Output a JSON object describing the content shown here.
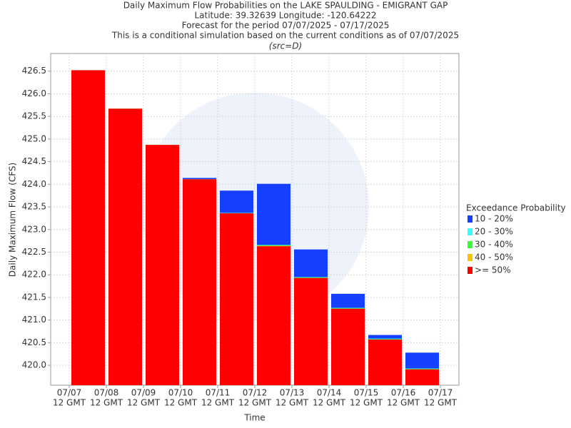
{
  "chart_data": {
    "type": "overlaid-bar",
    "title": "Daily Maximum Flow Probabilities on the LAKE SPAULDING - EMIGRANT GAP",
    "subtitle": [
      "Latitude: 39.32639 Longitude: -120.64222",
      "Forecast for the period 07/07/2025 - 07/17/2025",
      "This is a conditional simulation based on the current conditions as of 07/07/2025",
      "(src=D)"
    ],
    "x_label": "Time",
    "y_label": "Daily Maximum Flow (CFS)",
    "legend_title": "Exceedance Probability",
    "x_ticks": [
      "07/07",
      "07/08",
      "07/09",
      "07/10",
      "07/11",
      "07/12",
      "07/13",
      "07/14",
      "07/15",
      "07/16",
      "07/17"
    ],
    "x_tick_sublabels": [
      "12 GMT",
      "12 GMT",
      "12 GMT",
      "12 GMT",
      "12 GMT",
      "12 GMT",
      "12 GMT",
      "12 GMT",
      "12 GMT",
      "12 GMT",
      "12 GMT"
    ],
    "series": [
      {
        "name": "10 - 20%",
        "color": "#1540ff",
        "values": [
          426.52,
          425.67,
          424.87,
          424.14,
          423.86,
          424.01,
          422.56,
          421.58,
          420.67,
          420.28
        ]
      },
      {
        "name": "20 - 30%",
        "color": "#33ffff",
        "values": [
          426.52,
          425.67,
          424.87,
          424.11,
          423.37,
          422.66,
          421.95,
          421.27,
          420.59,
          419.93
        ]
      },
      {
        "name": "30 - 40%",
        "color": "#33ff33",
        "values": [
          426.52,
          425.67,
          424.87,
          424.11,
          423.36,
          422.65,
          421.94,
          421.26,
          420.58,
          419.92
        ]
      },
      {
        "name": "40 - 50%",
        "color": "#ffc000",
        "values": [
          426.52,
          425.67,
          424.87,
          424.11,
          423.36,
          422.64,
          421.93,
          421.25,
          420.57,
          419.91
        ]
      },
      {
        "name": ">= 50%",
        "color": "#ff0000",
        "values": [
          426.52,
          425.67,
          424.87,
          424.11,
          423.36,
          422.63,
          421.93,
          421.25,
          420.57,
          419.91
        ]
      }
    ],
    "ylim": [
      419.56,
      426.89
    ],
    "yticks": [
      {
        "value": 420,
        "label": "420.0"
      },
      420.5,
      {
        "value": 421,
        "label": "421.0"
      },
      421.5,
      {
        "value": 422,
        "label": "422.0"
      },
      422.5,
      {
        "value": 423,
        "label": "423.0"
      },
      423.5,
      {
        "value": 424,
        "label": "424.0"
      },
      424.5,
      {
        "value": 425,
        "label": "425.0"
      },
      425.5,
      {
        "value": 426,
        "label": "426.0"
      },
      426.5
    ],
    "grid": true
  }
}
